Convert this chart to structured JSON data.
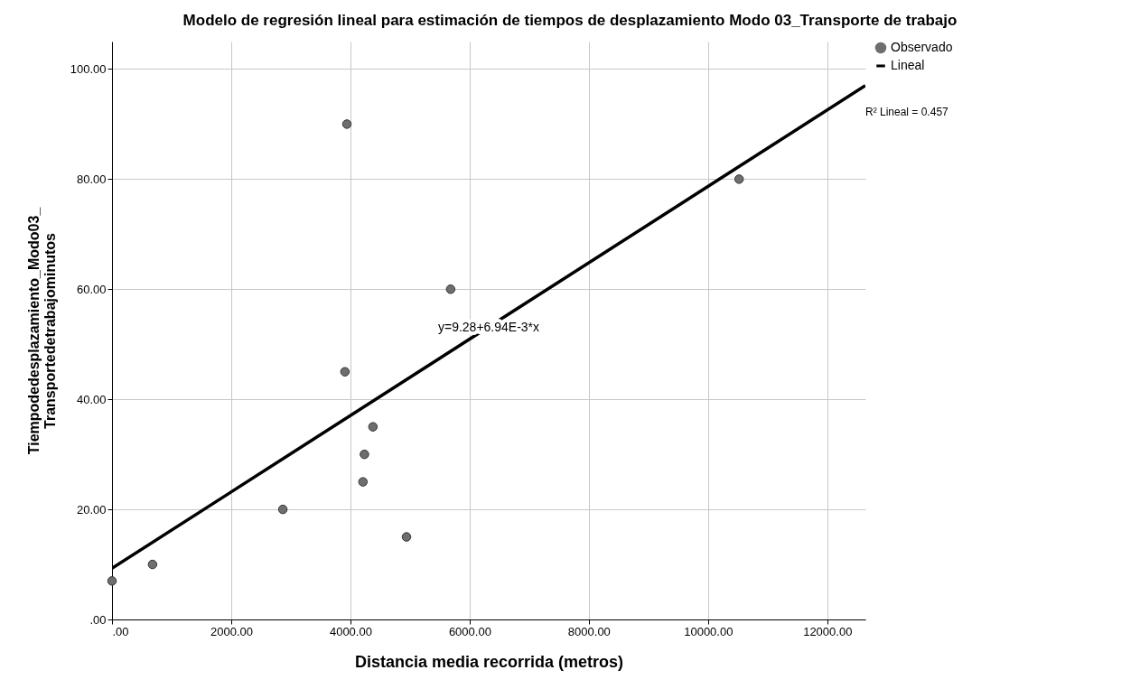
{
  "chart_data": {
    "type": "scatter",
    "title": "Modelo de regresión lineal para estimación de tiempos de desplazamiento Modo 03_Transporte de trabajo",
    "xlabel": "Distancia media recorrida (metros)",
    "ylabel": "Tiempodedesplazamiento_Modo03_\nTransportedetrabajominutos",
    "series": [
      {
        "name": "Observado",
        "marker": "circle",
        "color": "#6e6e6e",
        "x": [
          0,
          680,
          2866,
          3941,
          3908,
          4378,
          4235,
          4210,
          4941,
          5681,
          10521
        ],
        "values": [
          7,
          10,
          20,
          90,
          45,
          35,
          30,
          25,
          15,
          60,
          80
        ]
      },
      {
        "name": "Lineal",
        "type": "line",
        "color": "#000000",
        "x": [
          0,
          12640
        ],
        "values": [
          9.3,
          97.0
        ]
      }
    ],
    "xlim": [
      0,
      12640
    ],
    "ylim": [
      0,
      105
    ],
    "xticks": [
      {
        "value": 0,
        "label": ".00"
      },
      {
        "value": 2000,
        "label": "2000.00"
      },
      {
        "value": 4000,
        "label": "4000.00"
      },
      {
        "value": 6000,
        "label": "6000.00"
      },
      {
        "value": 8000,
        "label": "8000.00"
      },
      {
        "value": 10000,
        "label": "10000.00"
      },
      {
        "value": 12000,
        "label": "12000.00"
      }
    ],
    "yticks": [
      {
        "value": 0,
        "label": ".00"
      },
      {
        "value": 20,
        "label": "20.00"
      },
      {
        "value": 40,
        "label": "40.00"
      },
      {
        "value": 60,
        "label": "60.00"
      },
      {
        "value": 80,
        "label": "80.00"
      },
      {
        "value": 100,
        "label": "100.00"
      }
    ],
    "annotations": [
      {
        "text": "y=9.28+6.94E-3*x",
        "x": 6320,
        "y": 53
      },
      "R² Lineal = 0.457"
    ],
    "grid": true,
    "legend": "top right"
  }
}
